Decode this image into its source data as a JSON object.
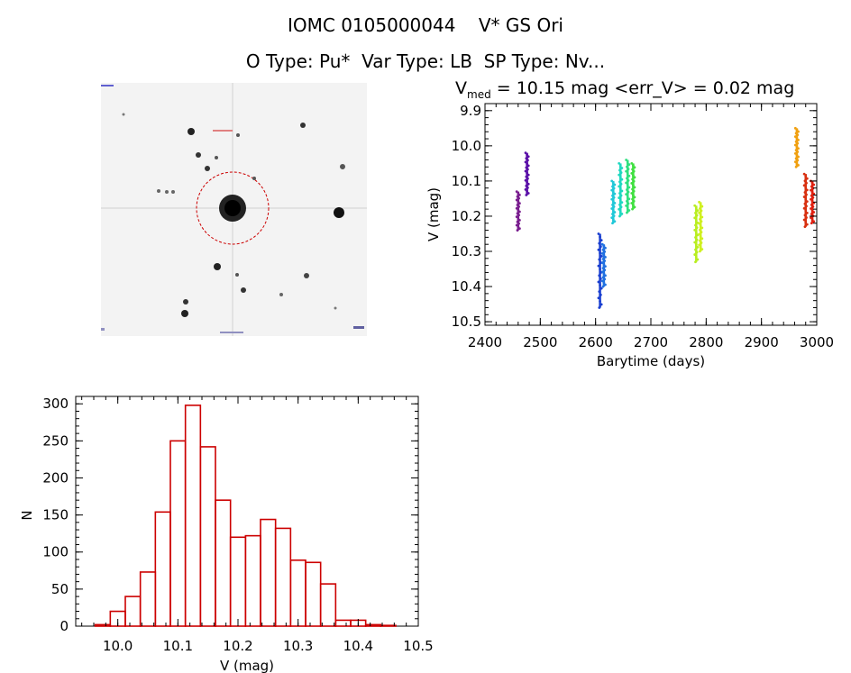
{
  "header": {
    "title": "IOMC 0105000044    V* GS Ori",
    "subtitle": "O Type: Pu*  Var Type: LB  SP Type: Nv..."
  },
  "image_panel": {
    "description_icon": "star-field-image",
    "colors": {
      "background": "#f3f3f3",
      "stars": "#111111",
      "circle": "#cc0000"
    }
  },
  "chart_data": [
    {
      "type": "scatter",
      "title_main": "V",
      "title_sub": "med",
      "title_rest": " = 10.15 mag <err_V> = 0.02 mag",
      "xlabel": "Barytime (days)",
      "ylabel": "V (mag)",
      "xlim": [
        2400,
        3000
      ],
      "ylim": [
        10.51,
        9.88
      ],
      "y_inverted": true,
      "xticks": [
        2400,
        2500,
        2600,
        2700,
        2800,
        2900,
        3000
      ],
      "yticks": [
        9.9,
        10.0,
        10.1,
        10.2,
        10.3,
        10.4,
        10.5
      ],
      "ytick_labels": [
        "9.9",
        "10.0",
        "10.1",
        "10.2",
        "10.3",
        "10.4",
        "10.5"
      ],
      "series": [
        {
          "color": "#7a1f8f",
          "x": 2460,
          "ymin": 10.13,
          "ymax": 10.24
        },
        {
          "color": "#5a10a8",
          "x": 2476,
          "ymin": 10.02,
          "ymax": 10.14
        },
        {
          "color": "#1a3fd0",
          "x": 2608,
          "ymin": 10.25,
          "ymax": 10.46
        },
        {
          "color": "#2070e0",
          "x": 2615,
          "ymin": 10.28,
          "ymax": 10.4
        },
        {
          "color": "#22c8d8",
          "x": 2632,
          "ymin": 10.1,
          "ymax": 10.22
        },
        {
          "color": "#1fd8c0",
          "x": 2645,
          "ymin": 10.05,
          "ymax": 10.2
        },
        {
          "color": "#2fe080",
          "x": 2658,
          "ymin": 10.04,
          "ymax": 10.19
        },
        {
          "color": "#40e040",
          "x": 2668,
          "ymin": 10.05,
          "ymax": 10.18
        },
        {
          "color": "#b8ee20",
          "x": 2782,
          "ymin": 10.17,
          "ymax": 10.33
        },
        {
          "color": "#d0f020",
          "x": 2790,
          "ymin": 10.16,
          "ymax": 10.3
        },
        {
          "color": "#f0a010",
          "x": 2964,
          "ymin": 9.95,
          "ymax": 10.06
        },
        {
          "color": "#d83010",
          "x": 2980,
          "ymin": 10.08,
          "ymax": 10.23
        },
        {
          "color": "#e02010",
          "x": 2992,
          "ymin": 10.1,
          "ymax": 10.22
        }
      ]
    },
    {
      "type": "bar",
      "subtype": "histogram",
      "xlabel": "V (mag)",
      "ylabel": "N",
      "xlim": [
        9.93,
        10.5
      ],
      "ylim": [
        0,
        310
      ],
      "xticks": [
        10.0,
        10.1,
        10.2,
        10.3,
        10.4,
        10.5
      ],
      "xtick_labels": [
        "10.0",
        "10.1",
        "10.2",
        "10.3",
        "10.4",
        "10.5"
      ],
      "yticks": [
        0,
        50,
        100,
        150,
        200,
        250,
        300
      ],
      "ytick_labels": [
        "0",
        "50",
        "100",
        "150",
        "200",
        "250",
        "300"
      ],
      "bin_width": 0.025,
      "bin_start": 9.9625,
      "values": [
        2,
        20,
        40,
        73,
        154,
        250,
        298,
        242,
        170,
        120,
        122,
        144,
        132,
        89,
        86,
        57,
        8,
        8,
        2,
        1
      ],
      "color": "#cc0000"
    }
  ]
}
